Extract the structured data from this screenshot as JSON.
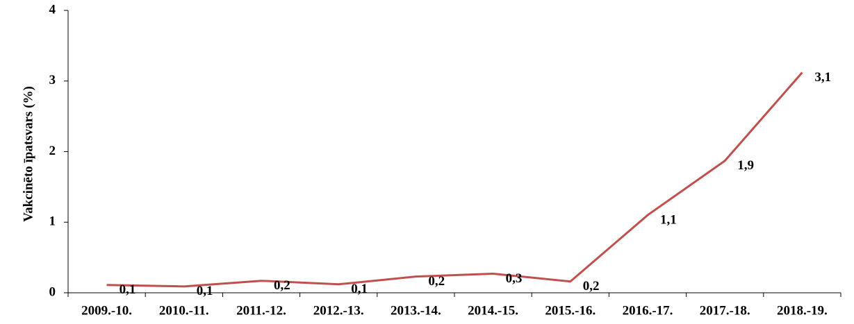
{
  "chart_data": {
    "type": "line",
    "y_label": "Vakcinēto īpatsvars (%)",
    "categories": [
      "2009.-10.",
      "2010.-11.",
      "2011.-12.",
      "2012.-13.",
      "2013.-14.",
      "2014.-15.",
      "2015.-16.",
      "2016.-17.",
      "2017.-18.",
      "2018.-19."
    ],
    "series": [
      {
        "color": "#c0504d",
        "values": [
          0.11,
          0.09,
          0.17,
          0.12,
          0.23,
          0.27,
          0.16,
          1.1,
          1.87,
          3.12
        ],
        "value_labels": [
          "0,1",
          "0,1",
          "0,2",
          "0,1",
          "0,2",
          "0,3",
          "0,2",
          "1,1",
          "1,9",
          "3,1"
        ]
      }
    ],
    "ylim": [
      0,
      4
    ],
    "yticks": [
      0,
      1,
      2,
      3,
      4
    ],
    "grid": false
  }
}
